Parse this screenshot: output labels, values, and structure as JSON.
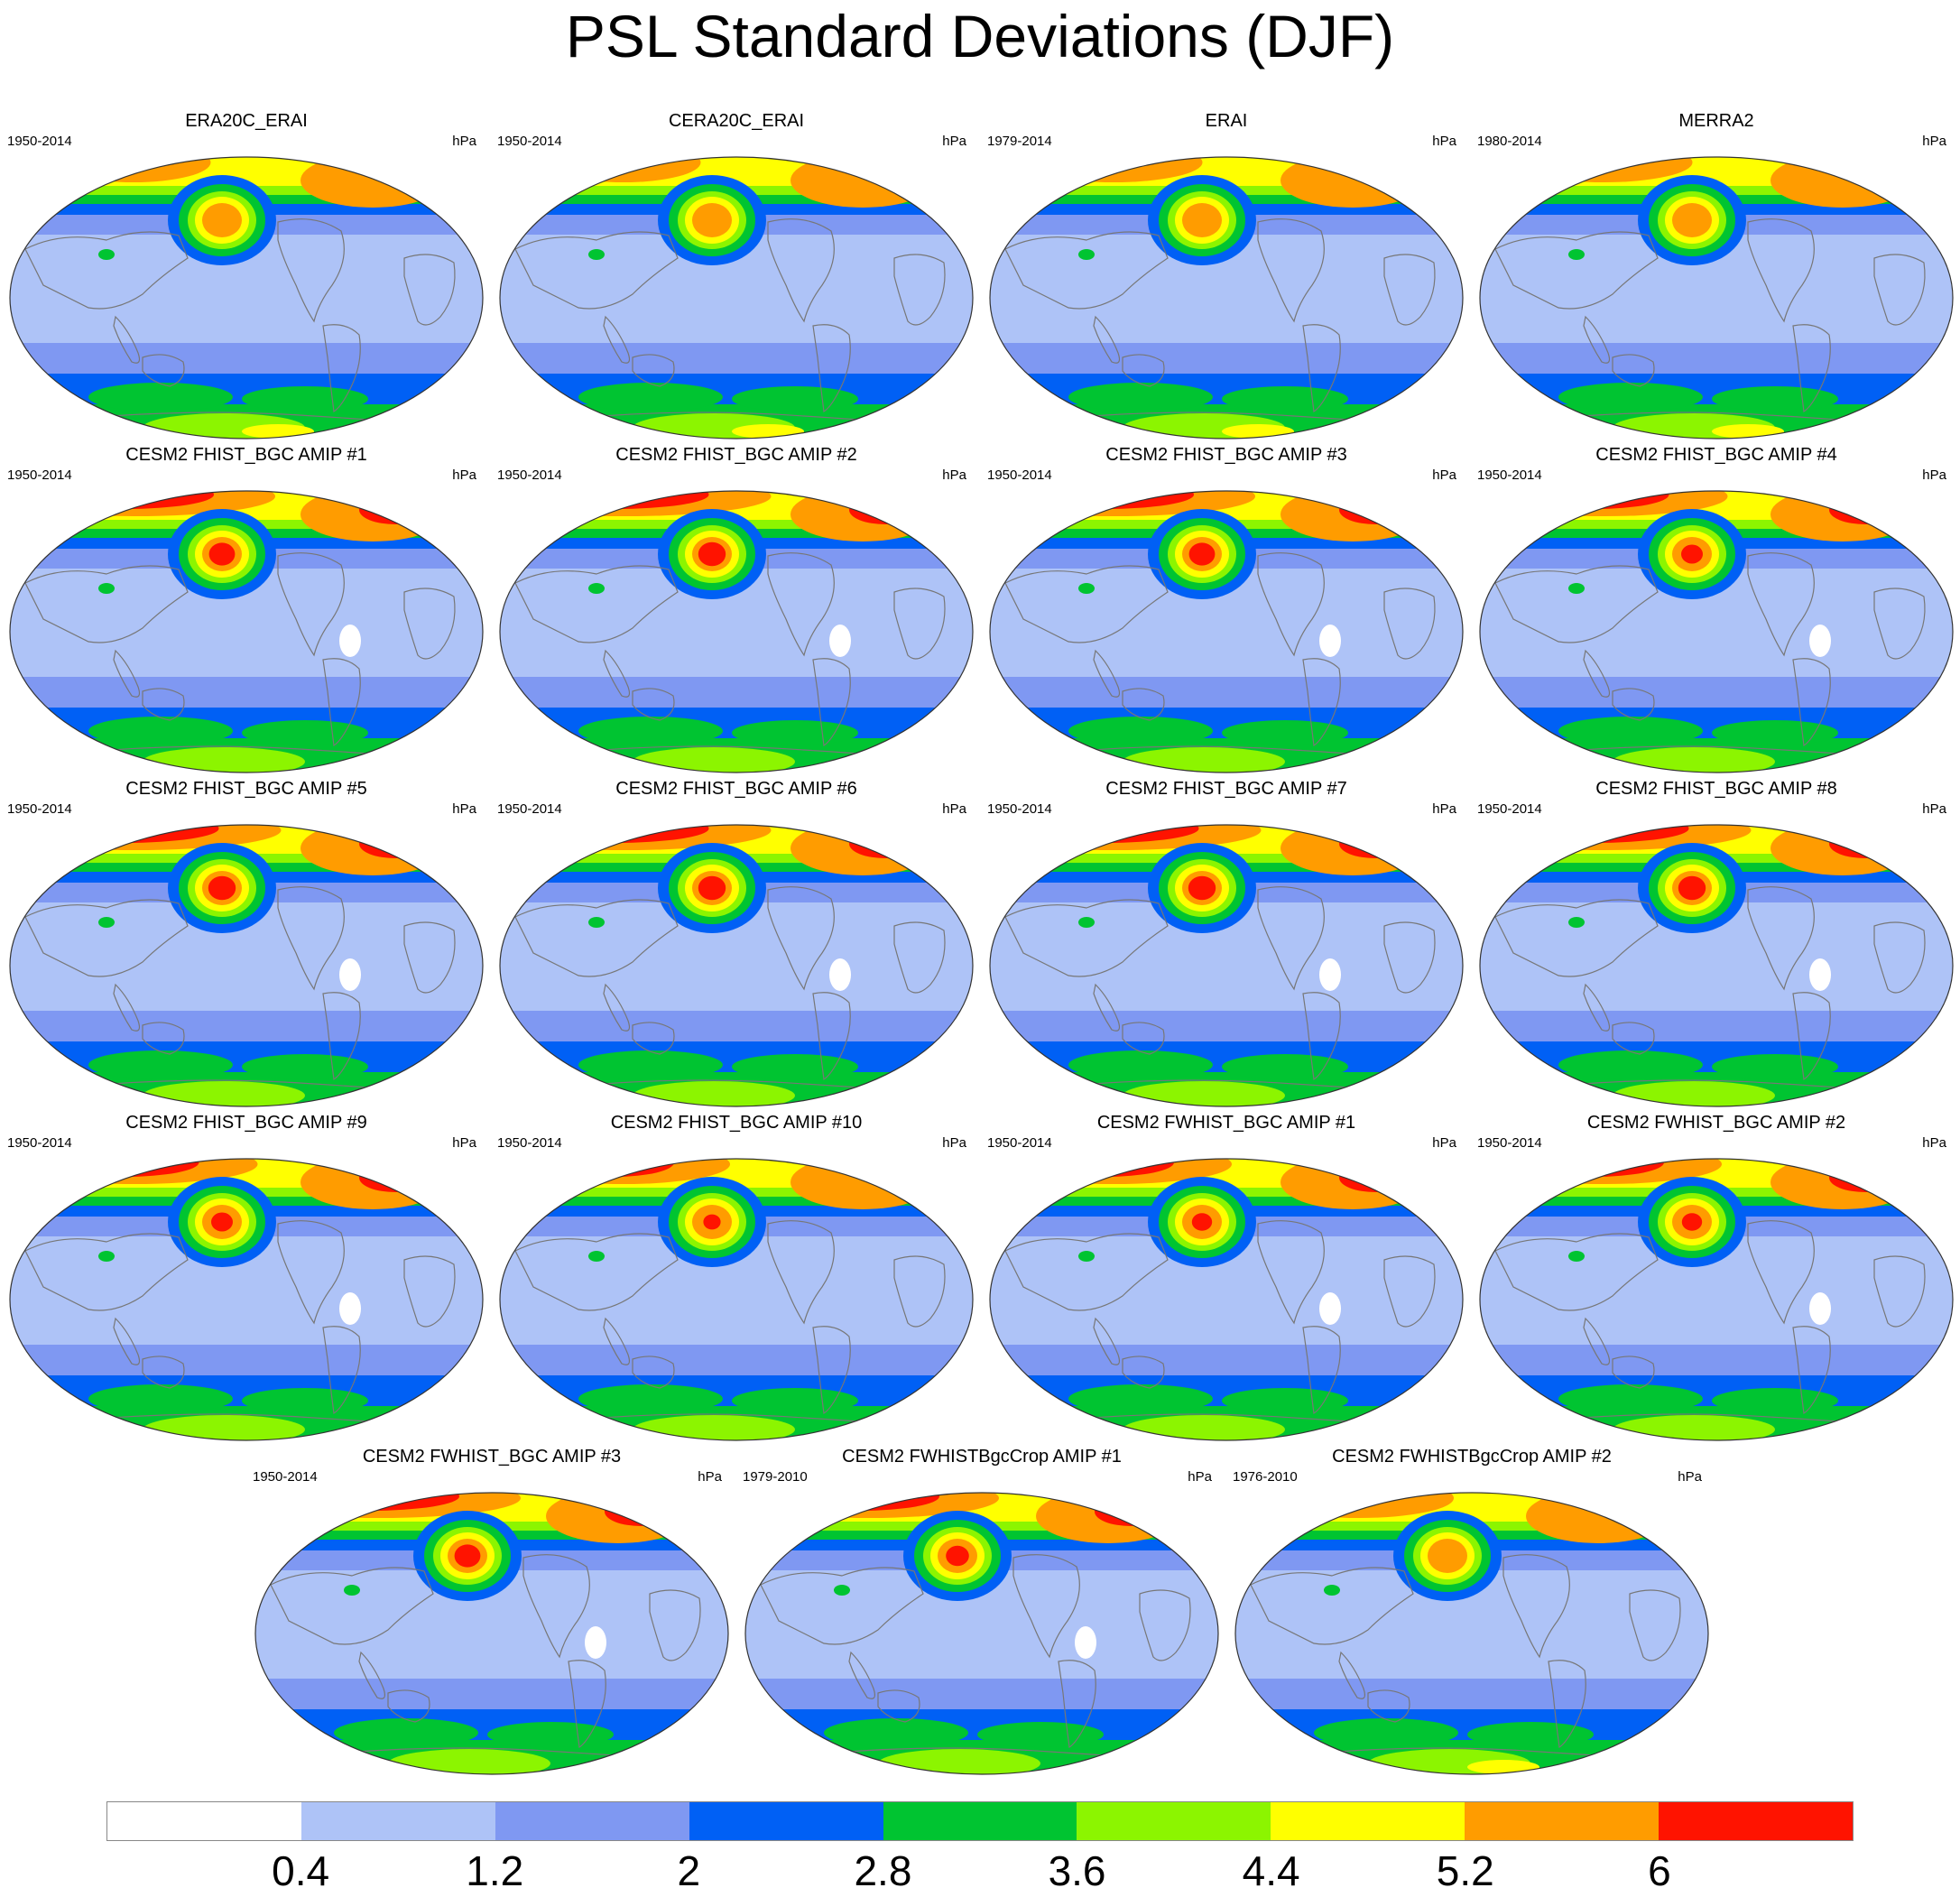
{
  "title": "PSL Standard Deviations (DJF)",
  "unit_label": "hPa",
  "panels": [
    {
      "title": "ERA20C_ERAI",
      "period": "1950-2014",
      "intensity": 0.35
    },
    {
      "title": "CERA20C_ERAI",
      "period": "1950-2014",
      "intensity": 0.35
    },
    {
      "title": "ERAI",
      "period": "1979-2014",
      "intensity": 0.45
    },
    {
      "title": "MERRA2",
      "period": "1980-2014",
      "intensity": 0.45
    },
    {
      "title": "CESM2 FHIST_BGC AMIP #1",
      "period": "1950-2014",
      "intensity": 0.9
    },
    {
      "title": "CESM2 FHIST_BGC AMIP #2",
      "period": "1950-2014",
      "intensity": 0.95
    },
    {
      "title": "CESM2 FHIST_BGC AMIP #3",
      "period": "1950-2014",
      "intensity": 0.9
    },
    {
      "title": "CESM2 FHIST_BGC AMIP #4",
      "period": "1950-2014",
      "intensity": 0.75
    },
    {
      "title": "CESM2 FHIST_BGC AMIP #5",
      "period": "1950-2014",
      "intensity": 0.95
    },
    {
      "title": "CESM2 FHIST_BGC AMIP #6",
      "period": "1950-2014",
      "intensity": 0.95
    },
    {
      "title": "CESM2 FHIST_BGC AMIP #7",
      "period": "1950-2014",
      "intensity": 0.95
    },
    {
      "title": "CESM2 FHIST_BGC AMIP #8",
      "period": "1950-2014",
      "intensity": 0.95
    },
    {
      "title": "CESM2 FHIST_BGC AMIP #9",
      "period": "1950-2014",
      "intensity": 0.75
    },
    {
      "title": "CESM2 FHIST_BGC AMIP #10",
      "period": "1950-2014",
      "intensity": 0.6
    },
    {
      "title": "CESM2 FWHIST_BGC AMIP #1",
      "period": "1950-2014",
      "intensity": 0.7
    },
    {
      "title": "CESM2 FWHIST_BGC AMIP #2",
      "period": "1950-2014",
      "intensity": 0.7
    },
    {
      "title": "CESM2 FWHIST_BGC AMIP #3",
      "period": "1950-2014",
      "intensity": 0.9
    },
    {
      "title": "CESM2 FWHISTBgcCrop AMIP #1",
      "period": "1979-2010",
      "intensity": 0.8
    },
    {
      "title": "CESM2 FWHISTBgcCrop AMIP #2",
      "period": "1976-2010",
      "intensity": 0.5
    }
  ],
  "colorbar": {
    "colors": [
      "#ffffff",
      "#aec3f7",
      "#7f98f2",
      "#0060f5",
      "#00c431",
      "#8cf500",
      "#ffff00",
      "#ff9c00",
      "#ff1300"
    ],
    "labels": [
      "0.4",
      "1.2",
      "2",
      "2.8",
      "3.6",
      "4.4",
      "5.2",
      "6"
    ]
  }
}
